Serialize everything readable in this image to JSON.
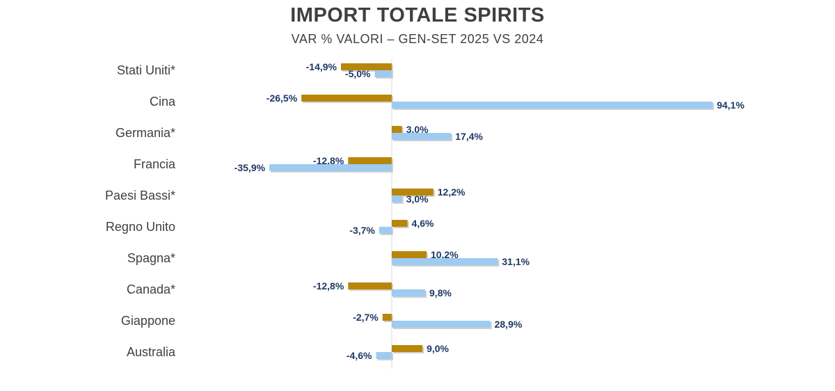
{
  "chart_data": {
    "type": "bar",
    "orientation": "horizontal",
    "title": "IMPORT TOTALE SPIRITS",
    "subtitle": "VAR % VALORI – GEN-SET 2025 VS 2024",
    "categories": [
      "Stati Uniti*",
      "Cina",
      "Germania*",
      "Francia",
      "Paesi Bassi*",
      "Regno Unito",
      "Spagna*",
      "Canada*",
      "Giappone",
      "Australia"
    ],
    "series": [
      {
        "color": "#b8860b",
        "values": [
          -14.9,
          -26.5,
          3.0,
          -12.8,
          12.2,
          4.6,
          10.2,
          -12.8,
          -2.7,
          9.0
        ],
        "labels": [
          "-14,9%",
          "-26,5%",
          "3,0%",
          "-12,8%",
          "12,2%",
          "4,6%",
          "10,2%",
          "-12,8%",
          "-2,7%",
          "9,0%"
        ]
      },
      {
        "color": "#9dcbf2",
        "values": [
          -5.0,
          94.1,
          17.4,
          -35.9,
          3.0,
          -3.7,
          31.1,
          9.8,
          28.9,
          -4.6
        ],
        "labels": [
          "-5,0%",
          "94,1%",
          "17,4%",
          "-35,9%",
          "3,0%",
          "-3,7%",
          "31,1%",
          "9,8%",
          "28,9%",
          "-4,6%"
        ]
      }
    ],
    "xlabel": "",
    "ylabel": "",
    "grid": false,
    "legend": "none"
  }
}
